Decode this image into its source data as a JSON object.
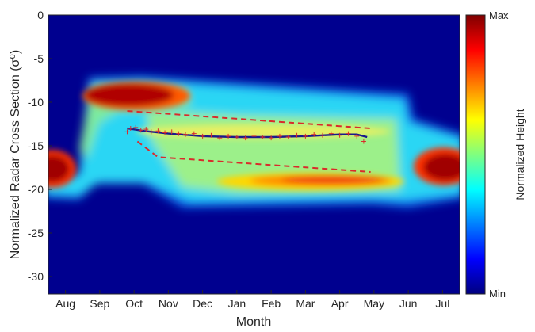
{
  "chart_data": {
    "type": "heatmap",
    "title": "",
    "xlabel": "Month",
    "ylabel": "Normalized Radar Cross Section (σ⁰)",
    "ylim": [
      -32,
      0
    ],
    "y_ticks": [
      0,
      -5,
      -10,
      -15,
      -20,
      -25,
      -30
    ],
    "x_categories": [
      "Aug",
      "Sep",
      "Oct",
      "Nov",
      "Dec",
      "Jan",
      "Feb",
      "Mar",
      "Apr",
      "May",
      "Jun",
      "Jul"
    ],
    "colorbar": {
      "label": "Normalized Height",
      "max_label": "Max",
      "min_label": "Min",
      "colormap": "jet"
    },
    "series": [
      {
        "type": "line",
        "style": "solid",
        "color": "#1a1a8c",
        "x": [
          2.3,
          2.8,
          3.5,
          4.5,
          5.5,
          6.5,
          7.5,
          8.5,
          9.0,
          9.3
        ],
        "y": [
          -13.0,
          -13.3,
          -13.6,
          -13.9,
          -14.0,
          -14.0,
          -13.9,
          -13.7,
          -13.7,
          -14.0
        ]
      },
      {
        "type": "line",
        "style": "dashed",
        "color": "#d92b2b",
        "x": [
          2.3,
          9.4
        ],
        "y": [
          -11.0,
          -13.0
        ]
      },
      {
        "type": "line",
        "style": "dashed",
        "color": "#d92b2b",
        "x": [
          2.6,
          3.2,
          9.4
        ],
        "y": [
          -14.5,
          -16.3,
          -18.0
        ]
      },
      {
        "type": "scatter",
        "marker": "+",
        "color": "#d92b2b",
        "x": [
          2.3,
          2.4,
          2.55,
          2.7,
          2.85,
          3.0,
          3.2,
          3.4,
          3.6,
          3.8,
          4.0,
          4.25,
          4.5,
          4.75,
          5.0,
          5.25,
          5.5,
          5.75,
          6.0,
          6.25,
          6.5,
          6.75,
          7.0,
          7.25,
          7.5,
          7.75,
          8.0,
          8.25,
          8.5,
          8.75,
          9.0,
          9.2
        ],
        "y": [
          -13.4,
          -13.0,
          -12.9,
          -13.2,
          -13.1,
          -13.4,
          -13.3,
          -13.5,
          -13.4,
          -13.6,
          -13.7,
          -13.6,
          -13.9,
          -13.8,
          -14.1,
          -13.9,
          -14.0,
          -14.1,
          -13.9,
          -14.0,
          -14.1,
          -13.9,
          -14.0,
          -13.8,
          -13.9,
          -13.7,
          -13.8,
          -13.6,
          -13.8,
          -13.6,
          -13.9,
          -14.5
        ]
      }
    ],
    "grid": false,
    "legend": "none"
  }
}
